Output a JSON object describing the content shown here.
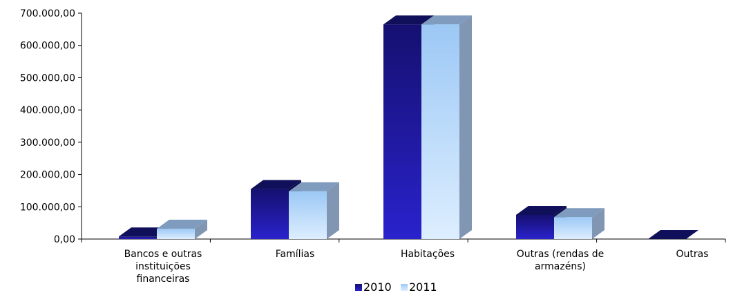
{
  "chart_data": {
    "type": "bar",
    "categories": [
      [
        "Bancos e outras",
        "instituições",
        "financeiras"
      ],
      [
        "Famílias"
      ],
      [
        "Habitações"
      ],
      [
        "Outras (rendas de",
        "armazéns)"
      ],
      [
        "Outras"
      ]
    ],
    "series": [
      {
        "name": "2010",
        "values": [
          8000,
          155000,
          665000,
          75000,
          0
        ]
      },
      {
        "name": "2011",
        "values": [
          32000,
          148000,
          665000,
          68000,
          0
        ]
      }
    ],
    "y_ticks": [
      "0,00",
      "100.000,00",
      "200.000,00",
      "300.000,00",
      "400.000,00",
      "500.000,00",
      "600.000,00",
      "700.000,00"
    ],
    "ylim": [
      0,
      700000
    ],
    "legend_position": "bottom",
    "grid": false,
    "colors": {
      "2010": {
        "front_light": "#2a22cc",
        "front_dark": "#151070",
        "top": "#10105a",
        "side": "#0c0c4a"
      },
      "2011": {
        "front_light": "#ddeeff",
        "front_dark": "#9cc8f5",
        "top": "#7f9cbe",
        "side": "#8196b3"
      }
    }
  }
}
